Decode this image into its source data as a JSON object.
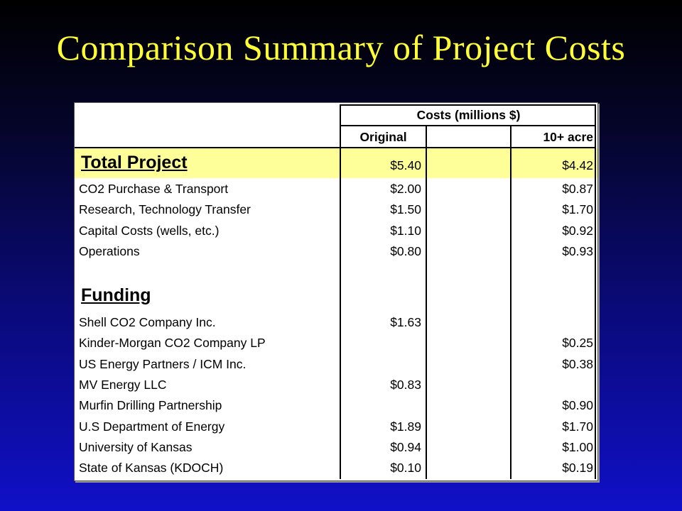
{
  "title": "Comparison Summary of Project Costs",
  "table": {
    "group_header": "Costs (millions $)",
    "col_headers": [
      "Original",
      "10+ acre"
    ],
    "total": {
      "label": "Total Project",
      "original": "$5.40",
      "acre": "$4.42"
    },
    "cost_rows": [
      {
        "label": "CO2 Purchase & Transport",
        "original": "$2.00",
        "acre": "$0.87"
      },
      {
        "label": "Research, Technology Transfer",
        "original": "$1.50",
        "acre": "$1.70"
      },
      {
        "label": "Capital Costs (wells, etc.)",
        "original": "$1.10",
        "acre": "$0.92"
      },
      {
        "label": "Operations",
        "original": "$0.80",
        "acre": "$0.93"
      }
    ],
    "funding_title": "Funding",
    "funding_rows": [
      {
        "label": "Shell CO2 Company Inc.",
        "original": "$1.63",
        "acre": ""
      },
      {
        "label": "Kinder-Morgan CO2 Company LP",
        "original": "",
        "acre": "$0.25"
      },
      {
        "label": "US Energy Partners / ICM Inc.",
        "original": "",
        "acre": "$0.38"
      },
      {
        "label": "MV Energy LLC",
        "original": "$0.83",
        "acre": ""
      },
      {
        "label": "Murfin Drilling Partnership",
        "original": "",
        "acre": "$0.90"
      },
      {
        "label": "U.S Department of Energy",
        "original": "$1.89",
        "acre": "$1.70"
      },
      {
        "label": "University of Kansas",
        "original": "$0.94",
        "acre": "$1.00"
      },
      {
        "label": "State of Kansas (KDOCH)",
        "original": "$0.10",
        "acre": "$0.19"
      }
    ]
  }
}
